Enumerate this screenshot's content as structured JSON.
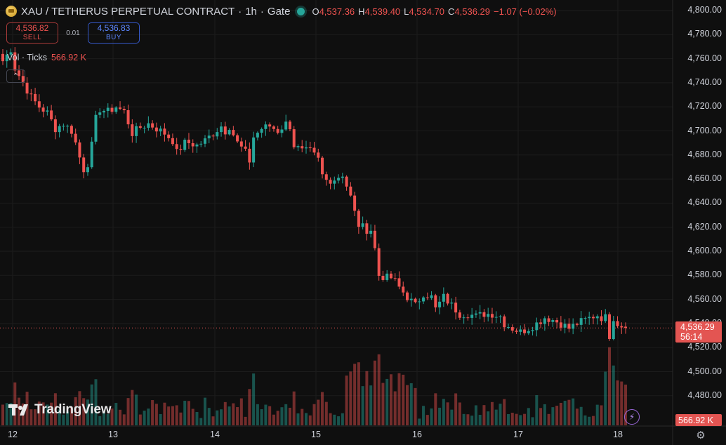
{
  "header": {
    "symbol": "XAU / TETHERUS PERPETUAL CONTRACT",
    "interval": "1h",
    "exchange": "Gate",
    "separator": "·",
    "ohlc": {
      "o_label": "O",
      "o": "4,537.36",
      "h_label": "H",
      "h": "4,539.40",
      "l_label": "L",
      "l": "4,534.70",
      "c_label": "C",
      "c": "4,536.29",
      "change": "−1.07 (−0.02%)"
    }
  },
  "trade": {
    "sell_price": "4,536.82",
    "sell_label": "SELL",
    "spread": "0.01",
    "buy_price": "4,536.83",
    "buy_label": "BUY"
  },
  "volume_legend": {
    "label": "Vol · Ticks",
    "value": "566.92 K"
  },
  "price_axis_labels": [
    "4,800.00",
    "4,780.00",
    "4,760.00",
    "4,740.00",
    "4,720.00",
    "4,700.00",
    "4,680.00",
    "4,660.00",
    "4,640.00",
    "4,620.00",
    "4,600.00",
    "4,580.00",
    "4,560.00",
    "4,540.00",
    "4,520.00",
    "4,500.00",
    "4,480.00"
  ],
  "time_axis_labels": [
    "12",
    "13",
    "14",
    "15",
    "16",
    "17",
    "18"
  ],
  "last_price": {
    "value": "4,536.29",
    "countdown": "56:14"
  },
  "last_volume": "566.92 K",
  "watermark": "TradingView",
  "icons": {
    "collapse": "chevron-up-icon",
    "bolt": "lightning-icon",
    "settings": "gear-icon",
    "coin": "gold-coin-icon"
  },
  "colors": {
    "up": "#26a69a",
    "down": "#ef5350",
    "background": "#0f0f0f",
    "grid": "#1e1e1e"
  },
  "chart_data": {
    "type": "candlestick",
    "interval": "1h",
    "y_range": [
      4470,
      4805
    ],
    "candle_count": 155,
    "anchors": [
      [
        0,
        4758
      ],
      [
        2,
        4768
      ],
      [
        3,
        4752
      ],
      [
        5,
        4740
      ],
      [
        7,
        4728
      ],
      [
        9,
        4720
      ],
      [
        11,
        4715
      ],
      [
        13,
        4702
      ],
      [
        15,
        4706
      ],
      [
        17,
        4700
      ],
      [
        18,
        4690
      ],
      [
        19,
        4678
      ],
      [
        20,
        4668
      ],
      [
        21,
        4673
      ],
      [
        22,
        4688
      ],
      [
        23,
        4710
      ],
      [
        24,
        4718
      ],
      [
        26,
        4716
      ],
      [
        28,
        4720
      ],
      [
        30,
        4716
      ],
      [
        32,
        4698
      ],
      [
        34,
        4703
      ],
      [
        36,
        4706
      ],
      [
        38,
        4702
      ],
      [
        40,
        4698
      ],
      [
        42,
        4692
      ],
      [
        43,
        4682
      ],
      [
        45,
        4690
      ],
      [
        46,
        4690
      ],
      [
        48,
        4688
      ],
      [
        50,
        4692
      ],
      [
        52,
        4698
      ],
      [
        54,
        4704
      ],
      [
        55,
        4700
      ],
      [
        56,
        4704
      ],
      [
        58,
        4690
      ],
      [
        60,
        4682
      ],
      [
        61,
        4675
      ],
      [
        62,
        4695
      ],
      [
        64,
        4702
      ],
      [
        66,
        4704
      ],
      [
        68,
        4700
      ],
      [
        70,
        4706
      ],
      [
        71,
        4704
      ],
      [
        72,
        4688
      ],
      [
        74,
        4683
      ],
      [
        76,
        4683
      ],
      [
        78,
        4676
      ],
      [
        79,
        4663
      ],
      [
        80,
        4659
      ],
      [
        82,
        4660
      ],
      [
        84,
        4664
      ],
      [
        86,
        4645
      ],
      [
        87,
        4632
      ],
      [
        88,
        4622
      ],
      [
        90,
        4618
      ],
      [
        91,
        4618
      ],
      [
        92,
        4602
      ],
      [
        93,
        4580
      ],
      [
        95,
        4578
      ],
      [
        96,
        4578
      ],
      [
        97,
        4575
      ],
      [
        98,
        4570
      ],
      [
        100,
        4562
      ],
      [
        102,
        4555
      ],
      [
        103,
        4560
      ],
      [
        104,
        4565
      ],
      [
        106,
        4562
      ],
      [
        107,
        4552
      ],
      [
        109,
        4562
      ],
      [
        111,
        4555
      ],
      [
        113,
        4548
      ],
      [
        115,
        4548
      ],
      [
        117,
        4546
      ],
      [
        119,
        4548
      ],
      [
        121,
        4548
      ],
      [
        123,
        4546
      ],
      [
        124,
        4540
      ],
      [
        126,
        4536
      ],
      [
        128,
        4533
      ],
      [
        130,
        4536
      ],
      [
        132,
        4540
      ],
      [
        134,
        4545
      ],
      [
        136,
        4543
      ],
      [
        138,
        4540
      ],
      [
        140,
        4536
      ],
      [
        142,
        4540
      ],
      [
        144,
        4543
      ],
      [
        146,
        4546
      ],
      [
        147,
        4547
      ],
      [
        148,
        4545
      ],
      [
        149,
        4545
      ],
      [
        150,
        4530
      ],
      [
        151,
        4545
      ],
      [
        152,
        4540
      ],
      [
        154,
        4536.29
      ]
    ],
    "ohlc_last": {
      "open": 4537.36,
      "high": 4539.4,
      "low": 4534.7,
      "close": 4536.29
    },
    "volume_series_label": "Vol · Ticks",
    "volume_last": 566920
  }
}
